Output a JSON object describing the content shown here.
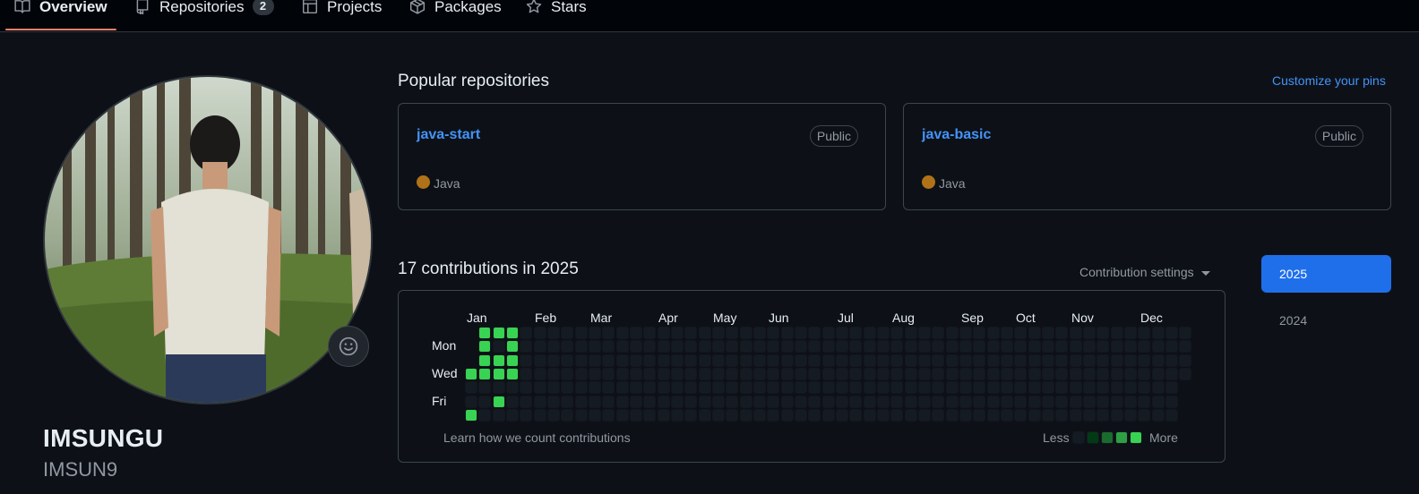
{
  "nav": {
    "tabs": [
      {
        "label": "Overview",
        "icon": "book-icon",
        "active": true
      },
      {
        "label": "Repositories",
        "icon": "repo-icon",
        "count": "2"
      },
      {
        "label": "Projects",
        "icon": "table-icon"
      },
      {
        "label": "Packages",
        "icon": "package-icon"
      },
      {
        "label": "Stars",
        "icon": "star-icon"
      }
    ]
  },
  "profile": {
    "name": "IMSUNGU",
    "username": "IMSUN9"
  },
  "popular": {
    "title": "Popular repositories",
    "customize_label": "Customize your pins",
    "repos": [
      {
        "name": "java-start",
        "visibility": "Public",
        "language": "Java",
        "language_color": "#b07219"
      },
      {
        "name": "java-basic",
        "visibility": "Public",
        "language": "Java",
        "language_color": "#b07219"
      }
    ]
  },
  "contributions": {
    "title": "17 contributions in 2025",
    "settings_label": "Contribution settings",
    "months": [
      "Jan",
      "Feb",
      "Mar",
      "Apr",
      "May",
      "Jun",
      "Jul",
      "Aug",
      "Sep",
      "Oct",
      "Nov",
      "Dec"
    ],
    "day_labels": [
      "Mon",
      "Wed",
      "Fri"
    ],
    "learn_label": "Learn how we count contributions",
    "legend_less": "Less",
    "legend_more": "More",
    "active_cells": [
      {
        "week": 0,
        "day": 3,
        "level": 4
      },
      {
        "week": 0,
        "day": 6,
        "level": 4
      },
      {
        "week": 1,
        "day": 0,
        "level": 4
      },
      {
        "week": 1,
        "day": 1,
        "level": 4
      },
      {
        "week": 1,
        "day": 2,
        "level": 4
      },
      {
        "week": 1,
        "day": 3,
        "level": 4
      },
      {
        "week": 2,
        "day": 0,
        "level": 4
      },
      {
        "week": 2,
        "day": 2,
        "level": 4
      },
      {
        "week": 2,
        "day": 3,
        "level": 4
      },
      {
        "week": 2,
        "day": 5,
        "level": 4
      },
      {
        "week": 3,
        "day": 0,
        "level": 4
      },
      {
        "week": 3,
        "day": 1,
        "level": 4
      },
      {
        "week": 3,
        "day": 2,
        "level": 4
      },
      {
        "week": 3,
        "day": 3,
        "level": 4
      }
    ],
    "colors": {
      "empty": "#151b23",
      "level1": "#033a16",
      "level2": "#196c2e",
      "level3": "#2ea043",
      "level4": "#39d353"
    }
  },
  "years": [
    {
      "label": "2025",
      "active": true
    },
    {
      "label": "2024",
      "active": false
    }
  ]
}
